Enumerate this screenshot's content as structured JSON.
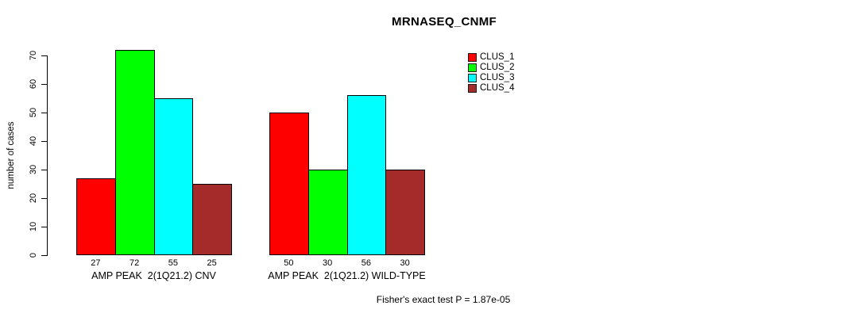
{
  "chart_data": {
    "type": "bar",
    "title": "MRNASEQ_CNMF",
    "ylabel": "number of cases",
    "xlabel": "",
    "ylim": [
      0,
      70
    ],
    "yticks": [
      0,
      10,
      20,
      30,
      40,
      50,
      60,
      70
    ],
    "grid": false,
    "legend_position": "top-right",
    "categories": [
      "AMP PEAK  2(1Q21.2) CNV",
      "AMP PEAK  2(1Q21.2) WILD-TYPE"
    ],
    "series": [
      {
        "name": "CLUS_1",
        "color": "#ff0000",
        "values": [
          27,
          50
        ]
      },
      {
        "name": "CLUS_2",
        "color": "#00ff00",
        "values": [
          72,
          30
        ]
      },
      {
        "name": "CLUS_3",
        "color": "#00ffff",
        "values": [
          55,
          56
        ]
      },
      {
        "name": "CLUS_4",
        "color": "#a52a2a",
        "values": [
          25,
          30
        ]
      }
    ],
    "bar_value_labels": [
      [
        27,
        72,
        55,
        25
      ],
      [
        50,
        30,
        56,
        30
      ]
    ],
    "annotation": "Fisher's exact test P = 1.87e-05"
  }
}
